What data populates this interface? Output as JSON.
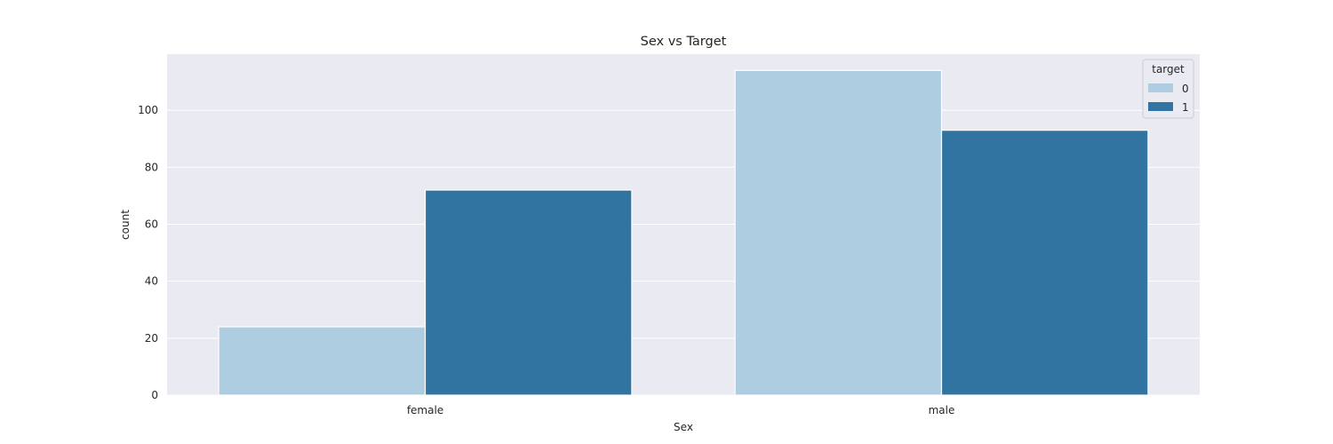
{
  "chart_data": {
    "type": "bar",
    "title": "Sex vs Target",
    "xlabel": "Sex",
    "ylabel": "count",
    "categories": [
      "female",
      "male"
    ],
    "series": [
      {
        "name": "0",
        "values": [
          24,
          114
        ],
        "color": "#aecde1"
      },
      {
        "name": "1",
        "values": [
          72,
          93
        ],
        "color": "#3274a1"
      }
    ],
    "ylim": [
      0,
      119.7
    ],
    "yticks": [
      0,
      20,
      40,
      60,
      80,
      100
    ],
    "ytick_labels": [
      "0",
      "20",
      "40",
      "60",
      "80",
      "100"
    ],
    "grid": true,
    "legend": {
      "title": "target",
      "position": "top-right"
    },
    "colors": {
      "plot_background": "#eaeaf2",
      "grid": "#ffffff",
      "text": "#262626"
    }
  }
}
